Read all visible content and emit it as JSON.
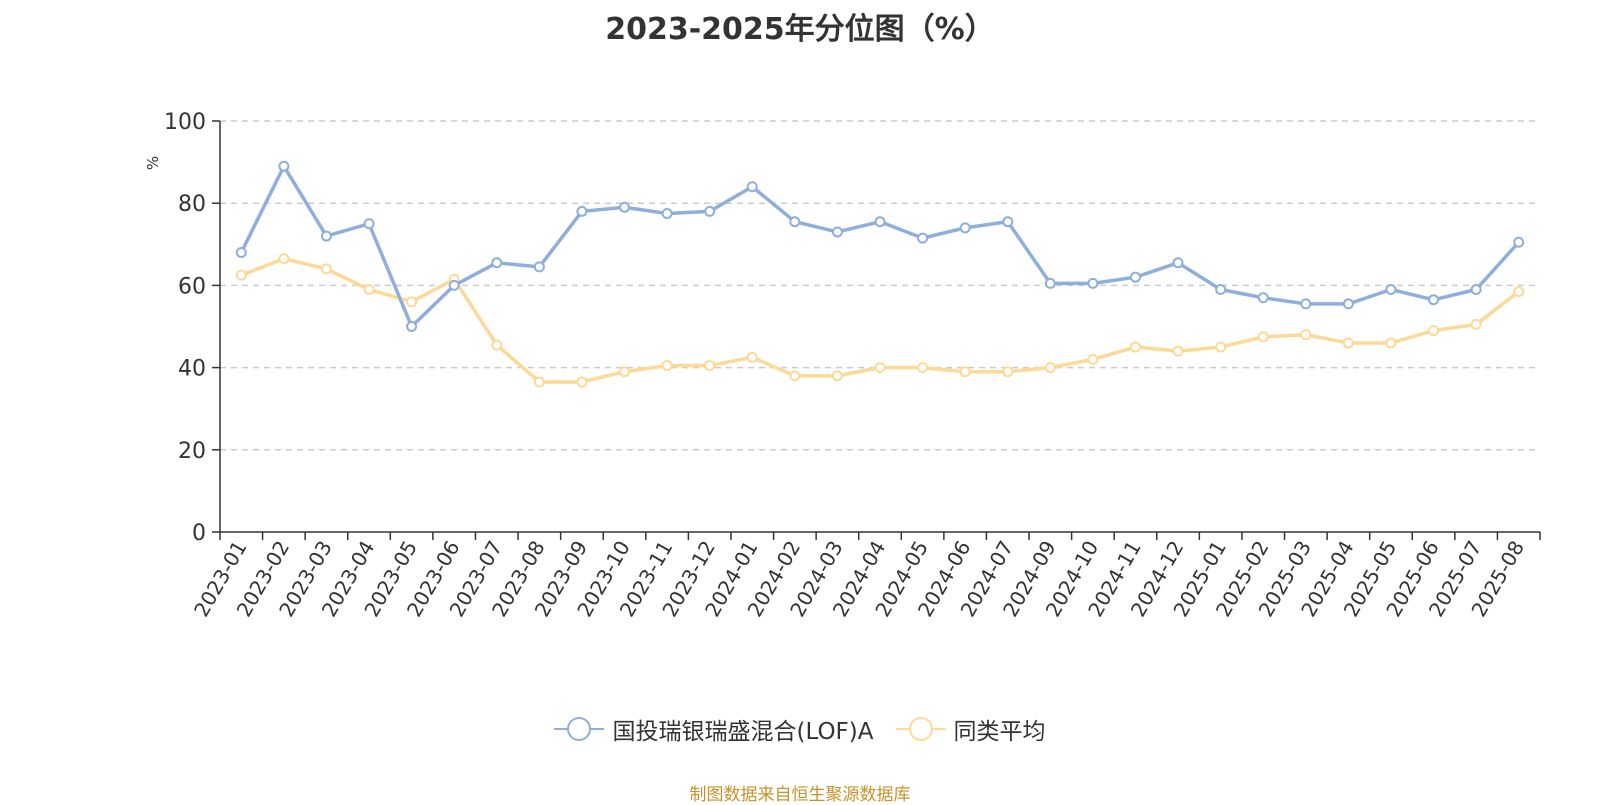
{
  "chart_data": {
    "type": "line",
    "title": "2023-2025年分位图（%）",
    "ylabel": "%",
    "ylim": [
      0,
      100
    ],
    "yticks": [
      "0",
      "20",
      "40",
      "60",
      "80",
      "100"
    ],
    "grid": true,
    "legend_position": "bottom",
    "categories": [
      "2023-01",
      "2023-02",
      "2023-03",
      "2023-04",
      "2023-05",
      "2023-06",
      "2023-07",
      "2023-08",
      "2023-09",
      "2023-10",
      "2023-11",
      "2023-12",
      "2024-01",
      "2024-02",
      "2024-03",
      "2024-04",
      "2024-05",
      "2024-06",
      "2024-07",
      "2024-09",
      "2024-10",
      "2024-11",
      "2024-12",
      "2025-01",
      "2025-02",
      "2025-03",
      "2025-04",
      "2025-05",
      "2025-06",
      "2025-07",
      "2025-08"
    ],
    "series": [
      {
        "name": "国投瑞银瑞盛混合(LOF)A",
        "color": "#8eaedb",
        "values": [
          68,
          89,
          72,
          75,
          50,
          60,
          65.5,
          64.5,
          78,
          79,
          77.5,
          78,
          84,
          75.5,
          73,
          75.5,
          71.5,
          74,
          75.5,
          60.5,
          60.5,
          62,
          65.5,
          59,
          57,
          55.5,
          55.5,
          59,
          56.5,
          59,
          70.5
        ]
      },
      {
        "name": "同类平均",
        "color": "#fdd998",
        "values": [
          62.5,
          66.5,
          64,
          59,
          56,
          61.5,
          45.5,
          36.5,
          36.5,
          39,
          40.5,
          40.5,
          42.5,
          38,
          38,
          40,
          40,
          39,
          39,
          40,
          42,
          45,
          44,
          45,
          47.5,
          48,
          46,
          46,
          49,
          50.5,
          58.5
        ]
      }
    ]
  },
  "source_text": "制图数据来自恒生聚源数据库"
}
